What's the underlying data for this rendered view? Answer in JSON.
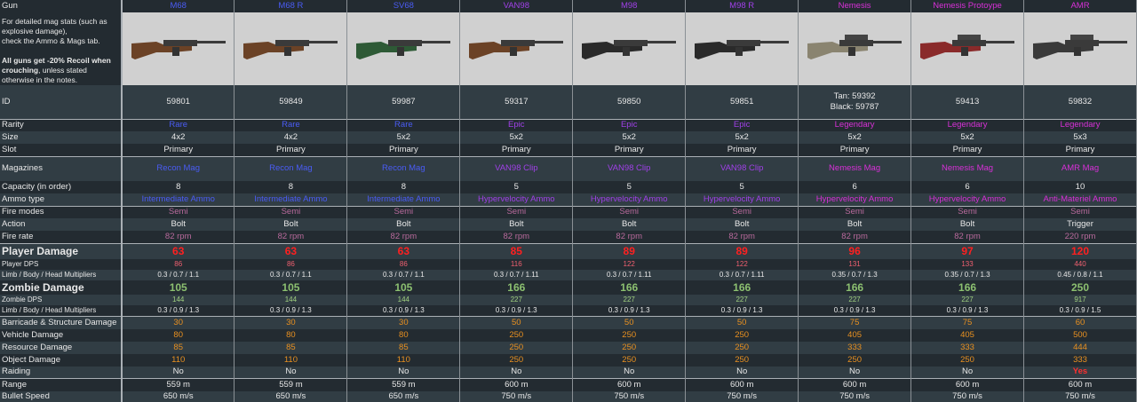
{
  "header": {
    "label": "Gun",
    "note_lines": [
      "For detailed mag stats (such as explosive damage),",
      "check the Ammo & Mags tab."
    ],
    "note_bold": "All guns get -20% Recoil when crouching",
    "note_rest": ", unless stated otherwise in the notes."
  },
  "labels": {
    "id": "ID",
    "rarity": "Rarity",
    "size": "Size",
    "slot": "Slot",
    "magazines": "Magazines",
    "capacity": "Capacity (in order)",
    "ammo": "Ammo type",
    "fire_modes": "Fire modes",
    "action": "Action",
    "fire_rate": "Fire rate",
    "player_damage": "Player Damage",
    "player_dps": "Player DPS",
    "player_mult": "Limb / Body / Head Multipliers",
    "zombie_damage": "Zombie Damage",
    "zombie_dps": "Zombie DPS",
    "zombie_mult": "Limb / Body / Head Multipliers",
    "barricade": "Barricade & Structure Damage",
    "vehicle": "Vehicle Damage",
    "resource": "Resource Damage",
    "object": "Object Damage",
    "raiding": "Raiding",
    "range": "Range",
    "bullet_speed": "Bullet Speed"
  },
  "colors": {
    "rare": "#4a5cf5",
    "epic": "#a040e8",
    "legendary": "#d830d8"
  },
  "guns": [
    {
      "name": "M68",
      "body": "#6b4226",
      "id": "59801",
      "rarity": "Rare",
      "rc": "blue",
      "size": "4x2",
      "slot": "Primary",
      "mag": "Recon Mag",
      "cap": "8",
      "ammo": "Intermediate Ammo",
      "fire": "Semi",
      "action": "Bolt",
      "rate": "82 rpm",
      "pdmg": "63",
      "pdps": "86",
      "pmult": "0.3 / 0.7 / 1.1",
      "zdmg": "105",
      "zdps": "144",
      "zmult": "0.3 / 0.9 / 1.3",
      "barr": "30",
      "veh": "80",
      "res": "85",
      "obj": "110",
      "raid": "No",
      "range": "559 m",
      "speed": "650 m/s"
    },
    {
      "name": "M68 R",
      "body": "#6b4226",
      "id": "59849",
      "rarity": "Rare",
      "rc": "blue",
      "size": "4x2",
      "slot": "Primary",
      "mag": "Recon Mag",
      "cap": "8",
      "ammo": "Intermediate Ammo",
      "fire": "Semi",
      "action": "Bolt",
      "rate": "82 rpm",
      "pdmg": "63",
      "pdps": "86",
      "pmult": "0.3 / 0.7 / 1.1",
      "zdmg": "105",
      "zdps": "144",
      "zmult": "0.3 / 0.9 / 1.3",
      "barr": "30",
      "veh": "80",
      "res": "85",
      "obj": "110",
      "raid": "No",
      "range": "559 m",
      "speed": "650 m/s"
    },
    {
      "name": "SV68",
      "body": "#2e5a36",
      "id": "59987",
      "rarity": "Rare",
      "rc": "blue",
      "size": "5x2",
      "slot": "Primary",
      "mag": "Recon Mag",
      "cap": "8",
      "ammo": "Intermediate Ammo",
      "fire": "Semi",
      "action": "Bolt",
      "rate": "82 rpm",
      "pdmg": "63",
      "pdps": "86",
      "pmult": "0.3 / 0.7 / 1.1",
      "zdmg": "105",
      "zdps": "144",
      "zmult": "0.3 / 0.9 / 1.3",
      "barr": "30",
      "veh": "80",
      "res": "85",
      "obj": "110",
      "raid": "No",
      "range": "559 m",
      "speed": "650 m/s"
    },
    {
      "name": "VAN98",
      "body": "#6b4226",
      "id": "59317",
      "rarity": "Epic",
      "rc": "epic",
      "size": "5x2",
      "slot": "Primary",
      "mag": "VAN98 Clip",
      "cap": "5",
      "ammo": "Hypervelocity Ammo",
      "fire": "Semi",
      "action": "Bolt",
      "rate": "82 rpm",
      "pdmg": "85",
      "pdps": "116",
      "pmult": "0.3 / 0.7 / 1.11",
      "zdmg": "166",
      "zdps": "227",
      "zmult": "0.3 / 0.9 / 1.3",
      "barr": "50",
      "veh": "250",
      "res": "250",
      "obj": "250",
      "raid": "No",
      "range": "600 m",
      "speed": "750 m/s"
    },
    {
      "name": "M98",
      "body": "#2a2a2a",
      "id": "59850",
      "rarity": "Epic",
      "rc": "epic",
      "size": "5x2",
      "slot": "Primary",
      "mag": "VAN98 Clip",
      "cap": "5",
      "ammo": "Hypervelocity Ammo",
      "fire": "Semi",
      "action": "Bolt",
      "rate": "82 rpm",
      "pdmg": "89",
      "pdps": "122",
      "pmult": "0.3 / 0.7 / 1.11",
      "zdmg": "166",
      "zdps": "227",
      "zmult": "0.3 / 0.9 / 1.3",
      "barr": "50",
      "veh": "250",
      "res": "250",
      "obj": "250",
      "raid": "No",
      "range": "600 m",
      "speed": "750 m/s"
    },
    {
      "name": "M98 R",
      "body": "#2a2a2a",
      "id": "59851",
      "rarity": "Epic",
      "rc": "epic",
      "size": "5x2",
      "slot": "Primary",
      "mag": "VAN98 Clip",
      "cap": "5",
      "ammo": "Hypervelocity Ammo",
      "fire": "Semi",
      "action": "Bolt",
      "rate": "82 rpm",
      "pdmg": "89",
      "pdps": "122",
      "pmult": "0.3 / 0.7 / 1.11",
      "zdmg": "166",
      "zdps": "227",
      "zmult": "0.3 / 0.9 / 1.3",
      "barr": "50",
      "veh": "250",
      "res": "250",
      "obj": "250",
      "raid": "No",
      "range": "600 m",
      "speed": "750 m/s"
    },
    {
      "name": "Nemesis",
      "body": "#8a8470",
      "id": "Tan: 59392",
      "id2": "Black: 59787",
      "rarity": "Legendary",
      "rc": "leg",
      "size": "5x2",
      "slot": "Primary",
      "mag": "Nemesis Mag",
      "cap": "6",
      "ammo": "Hypervelocity Ammo",
      "fire": "Semi",
      "action": "Bolt",
      "rate": "82 rpm",
      "pdmg": "96",
      "pdps": "131",
      "pmult": "0.35 / 0.7 / 1.3",
      "zdmg": "166",
      "zdps": "227",
      "zmult": "0.3 / 0.9 / 1.3",
      "barr": "75",
      "veh": "405",
      "res": "333",
      "obj": "250",
      "raid": "No",
      "range": "600 m",
      "speed": "750 m/s"
    },
    {
      "name": "Nemesis Protoype",
      "body": "#8a2a2a",
      "id": "59413",
      "rarity": "Legendary",
      "rc": "leg",
      "size": "5x2",
      "slot": "Primary",
      "mag": "Nemesis Mag",
      "cap": "6",
      "ammo": "Hypervelocity Ammo",
      "fire": "Semi",
      "action": "Bolt",
      "rate": "82 rpm",
      "pdmg": "97",
      "pdps": "133",
      "pmult": "0.35 / 0.7 / 1.3",
      "zdmg": "166",
      "zdps": "227",
      "zmult": "0.3 / 0.9 / 1.3",
      "barr": "75",
      "veh": "405",
      "res": "333",
      "obj": "250",
      "raid": "No",
      "range": "600 m",
      "speed": "750 m/s"
    },
    {
      "name": "AMR",
      "body": "#3a3a3a",
      "id": "59832",
      "rarity": "Legendary",
      "rc": "leg",
      "size": "5x3",
      "slot": "Primary",
      "mag": "AMR Mag",
      "cap": "10",
      "ammo": "Anti-Materiel Ammo",
      "fire": "Semi",
      "action": "Trigger",
      "rate": "220 rpm",
      "pdmg": "120",
      "pdps": "440",
      "pmult": "0.45 / 0.8 / 1.1",
      "zdmg": "250",
      "zdps": "917",
      "zmult": "0.3 / 0.9 / 1.5",
      "barr": "60",
      "veh": "500",
      "res": "444",
      "obj": "333",
      "raid": "Yes",
      "range": "600 m",
      "speed": "750 m/s"
    }
  ]
}
